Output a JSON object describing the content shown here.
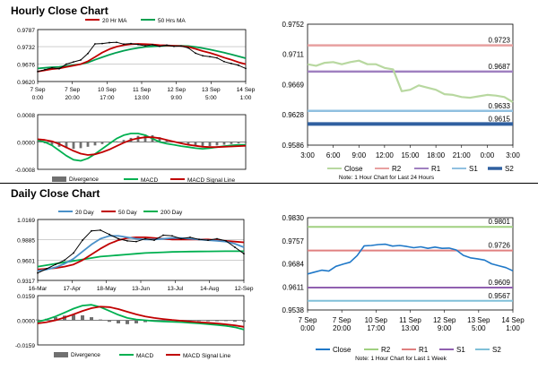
{
  "sections": {
    "hourly_title": "Hourly Close Chart",
    "daily_title": "Daily Close Chart"
  },
  "colors": {
    "ma20": "#c00000",
    "ma50": "#00a050",
    "ma20day": "#4a90c8",
    "ma200day": "#00b050",
    "price": "#000000",
    "close_hourly": "#b8d8a0",
    "close_weekly": "#1f78c8",
    "r2": "#e8a0a0",
    "r1": "#a080c0",
    "s1": "#90c0e0",
    "s2": "#3060a0",
    "r2_week": "#a0d080",
    "r1_week": "#e08080",
    "s1_week": "#9060b0",
    "s2_week": "#80c0d8",
    "divergence": "#707070",
    "macd": "#00b050",
    "macd_signal": "#c00000"
  },
  "chart_data": [
    {
      "id": "hourly-price",
      "type": "line",
      "legend": [
        "20 Hr MA",
        "50 Hrs MA"
      ],
      "legend_position": "top",
      "ylim": [
        0.962,
        0.9787
      ],
      "yticks": [
        "0.9787",
        "0.9732",
        "0.9676",
        "0.9620"
      ],
      "yticks_values": [
        0.9787,
        0.9732,
        0.9676,
        0.962
      ],
      "xticks": [
        "7 Sep|0:00",
        "7 Sep|20:00",
        "10 Sep|17:00",
        "11 Sep|13:00",
        "12 Sep|9:00",
        "13 Sep|5:00",
        "14 Sep|1:00"
      ],
      "price": [
        0.9652,
        0.9658,
        0.9664,
        0.9661,
        0.9676,
        0.9683,
        0.9689,
        0.971,
        0.9741,
        0.9742,
        0.9745,
        0.9746,
        0.974,
        0.9742,
        0.9739,
        0.9735,
        0.9738,
        0.9733,
        0.9737,
        0.9733,
        0.9734,
        0.9728,
        0.9711,
        0.9703,
        0.97,
        0.9696,
        0.9684,
        0.9678,
        0.9672,
        0.9662
      ],
      "ma20": [
        0.9652,
        0.9656,
        0.966,
        0.9662,
        0.9667,
        0.9671,
        0.9676,
        0.9685,
        0.9699,
        0.9713,
        0.9724,
        0.9732,
        0.9737,
        0.974,
        0.9741,
        0.974,
        0.9739,
        0.9737,
        0.9736,
        0.9735,
        0.9734,
        0.9731,
        0.9725,
        0.9718,
        0.9712,
        0.9705,
        0.9697,
        0.969,
        0.9682,
        0.9676
      ],
      "ma50": [
        0.9662,
        0.9664,
        0.9666,
        0.9667,
        0.967,
        0.9673,
        0.9676,
        0.9681,
        0.969,
        0.9698,
        0.9706,
        0.9713,
        0.9719,
        0.9724,
        0.9728,
        0.9731,
        0.9733,
        0.9734,
        0.9735,
        0.9735,
        0.9735,
        0.9734,
        0.9731,
        0.9727,
        0.9723,
        0.9718,
        0.9713,
        0.9707,
        0.9701,
        0.9695
      ]
    },
    {
      "id": "hourly-macd",
      "type": "bar",
      "legend": [
        "Divergence",
        "MACD",
        "MACD Signal Line"
      ],
      "legend_position": "bottom",
      "ylim": [
        -0.0008,
        0.0008
      ],
      "yticks": [
        "0.0008",
        "0.0000",
        "-0.0008"
      ],
      "yticks_values": [
        0.0008,
        0.0,
        -0.0008
      ],
      "divergence": [
        0.0,
        -4e-05,
        -8e-05,
        -0.00014,
        -0.00018,
        -0.0002,
        -0.00018,
        -0.00014,
        -0.0001,
        -6e-05,
        -2e-05,
        2e-05,
        6e-05,
        0.00012,
        0.00018,
        0.00022,
        0.0002,
        0.00014,
        6e-05,
        0.0,
        -4e-05,
        -8e-05,
        -0.0001,
        -0.00012,
        -0.00012,
        -0.0001,
        -8e-05,
        -6e-05,
        -4e-05,
        -2e-05
      ],
      "macd": [
        5e-05,
        0.0,
        -0.0001,
        -0.00025,
        -0.0004,
        -0.00052,
        -0.00055,
        -0.00048,
        -0.00035,
        -0.0002,
        -5e-05,
        0.0001,
        0.0002,
        0.00025,
        0.00025,
        0.0002,
        0.0001,
        0.0,
        -5e-05,
        -8e-05,
        -0.00012,
        -0.00015,
        -0.00018,
        -0.0002,
        -0.00018,
        -0.00015,
        -0.00012,
        -0.0001,
        -8e-05,
        -8e-05
      ],
      "signal": [
        8e-05,
        6e-05,
        2e-05,
        -6e-05,
        -0.00016,
        -0.00026,
        -0.00034,
        -0.00038,
        -0.00036,
        -0.0003,
        -0.00022,
        -0.00012,
        -2e-05,
        6e-05,
        0.00011,
        0.00014,
        0.00014,
        0.00011,
        6e-05,
        1e-05,
        -4e-05,
        -8e-05,
        -0.00011,
        -0.00014,
        -0.00015,
        -0.00015,
        -0.00014,
        -0.00013,
        -0.00012,
        -0.00011
      ]
    },
    {
      "id": "hourly-pivots",
      "type": "line",
      "legend": [
        "Close",
        "R2",
        "R1",
        "S1",
        "S2"
      ],
      "legend_position": "bottom",
      "note": "Note: 1 Hour Chart for Last 24 Hours",
      "ylim": [
        0.9586,
        0.9752
      ],
      "yticks": [
        "0.9752",
        "0.9711",
        "0.9669",
        "0.9628",
        "0.9586"
      ],
      "yticks_values": [
        0.9752,
        0.9711,
        0.9669,
        0.9628,
        0.9586
      ],
      "xticks": [
        "3:00",
        "6:00",
        "9:00",
        "12:00",
        "15:00",
        "18:00",
        "21:00",
        "0:00",
        "3:00"
      ],
      "x_range": [
        0,
        24
      ],
      "close_x": [
        0,
        1,
        2,
        3,
        4,
        5,
        6,
        7,
        8,
        9,
        10,
        11,
        12,
        13,
        14,
        15,
        16,
        17,
        18,
        19,
        20,
        21,
        22,
        23,
        24
      ],
      "close": [
        0.9697,
        0.9695,
        0.9699,
        0.97,
        0.9697,
        0.97,
        0.9702,
        0.9697,
        0.9697,
        0.9692,
        0.969,
        0.966,
        0.9662,
        0.9668,
        0.9665,
        0.9662,
        0.9656,
        0.9655,
        0.9652,
        0.9651,
        0.9653,
        0.9655,
        0.9654,
        0.9652,
        0.9645
      ],
      "levels": [
        {
          "name": "R2",
          "value": 0.9723,
          "label": "0.9723"
        },
        {
          "name": "R1",
          "value": 0.9687,
          "label": "0.9687"
        },
        {
          "name": "S1",
          "value": 0.9633,
          "label": "0.9633"
        },
        {
          "name": "S2",
          "value": 0.9615,
          "label": "0.9615"
        }
      ]
    },
    {
      "id": "daily-price",
      "type": "line",
      "legend": [
        "20 Day",
        "50 Day",
        "200 Day"
      ],
      "legend_position": "top",
      "ylim": [
        0.9317,
        1.0169
      ],
      "yticks": [
        "1.0169",
        "0.9885",
        "0.9601",
        "0.9317"
      ],
      "yticks_values": [
        1.0169,
        0.9885,
        0.9601,
        0.9317
      ],
      "xticks": [
        "16-Mar",
        "17-Apr",
        "18-May",
        "13-Jun",
        "13-Jul",
        "14-Aug",
        "12-Sep"
      ],
      "price": [
        0.942,
        0.948,
        0.954,
        0.96,
        0.97,
        0.988,
        1.001,
        1.002,
        0.996,
        0.99,
        0.987,
        0.986,
        0.99,
        0.988,
        0.995,
        0.994,
        0.99,
        0.992,
        0.989,
        0.988,
        0.99,
        0.987,
        0.978,
        0.969
      ],
      "ma20": [
        0.945,
        0.947,
        0.95,
        0.955,
        0.962,
        0.972,
        0.982,
        0.99,
        0.994,
        0.994,
        0.992,
        0.99,
        0.989,
        0.989,
        0.99,
        0.991,
        0.991,
        0.99,
        0.989,
        0.988,
        0.987,
        0.986,
        0.983,
        0.978
      ],
      "ma50": [
        0.947,
        0.948,
        0.949,
        0.951,
        0.954,
        0.96,
        0.968,
        0.976,
        0.983,
        0.988,
        0.991,
        0.992,
        0.992,
        0.991,
        0.99,
        0.989,
        0.989,
        0.989,
        0.989,
        0.989,
        0.988,
        0.987,
        0.986,
        0.985
      ],
      "ma200": [
        0.951,
        0.953,
        0.955,
        0.957,
        0.959,
        0.961,
        0.963,
        0.965,
        0.966,
        0.967,
        0.968,
        0.969,
        0.97,
        0.9705,
        0.971,
        0.9715,
        0.9718,
        0.972,
        0.9722,
        0.9723,
        0.9724,
        0.9725,
        0.9725,
        0.9725
      ]
    },
    {
      "id": "daily-macd",
      "type": "bar",
      "legend": [
        "Divergence",
        "MACD",
        "MACD Signal Line"
      ],
      "legend_position": "bottom",
      "ylim": [
        -0.0159,
        0.0159
      ],
      "yticks": [
        "0.0159",
        "0.0000",
        "-0.0159"
      ],
      "yticks_values": [
        0.0159,
        0.0,
        -0.0159
      ],
      "divergence": [
        0.0005,
        0.001,
        0.002,
        0.003,
        0.0035,
        0.0032,
        0.002,
        0.0005,
        -0.001,
        -0.002,
        -0.0025,
        -0.002,
        -0.0012,
        -0.0005,
        0.0,
        0.0003,
        0.0002,
        -0.0002,
        -0.0005,
        -0.0006,
        -0.0006,
        -0.0005,
        -0.0008,
        -0.001
      ],
      "macd": [
        -0.001,
        0.0005,
        0.0025,
        0.005,
        0.0075,
        0.0095,
        0.01,
        0.0085,
        0.006,
        0.0035,
        0.0015,
        0.0005,
        0.0,
        -0.0005,
        -0.0008,
        -0.001,
        -0.0012,
        -0.0016,
        -0.002,
        -0.0025,
        -0.003,
        -0.0036,
        -0.0045,
        -0.006
      ],
      "signal": [
        -0.002,
        -0.0012,
        0.0,
        0.0018,
        0.0038,
        0.006,
        0.0078,
        0.0088,
        0.0085,
        0.0072,
        0.0055,
        0.0038,
        0.0025,
        0.0015,
        0.0008,
        0.0002,
        -0.0003,
        -0.0008,
        -0.0012,
        -0.0016,
        -0.002,
        -0.0026,
        -0.0033,
        -0.0042
      ]
    },
    {
      "id": "weekly-pivots",
      "type": "line",
      "legend": [
        "Close",
        "R2",
        "R1",
        "S1",
        "S2"
      ],
      "legend_position": "bottom",
      "note": "Note: 1 Hour Chart for Last 1 Week",
      "ylim": [
        0.9538,
        0.983
      ],
      "yticks": [
        "0.9830",
        "0.9757",
        "0.9684",
        "0.9611",
        "0.9538"
      ],
      "yticks_values": [
        0.983,
        0.9757,
        0.9684,
        0.9611,
        0.9538
      ],
      "xticks": [
        "7 Sep|0:00",
        "7 Sep|20:00",
        "10 Sep|17:00",
        "11 Sep|13:00",
        "12 Sep|9:00",
        "13 Sep|5:00",
        "14 Sep|1:00"
      ],
      "x_range": [
        0,
        29
      ],
      "close_x": [
        0,
        1,
        2,
        3,
        4,
        5,
        6,
        7,
        8,
        9,
        10,
        11,
        12,
        13,
        14,
        15,
        16,
        17,
        18,
        19,
        20,
        21,
        22,
        23,
        24,
        25,
        26,
        27,
        28,
        29
      ],
      "close": [
        0.9652,
        0.9658,
        0.9664,
        0.9661,
        0.9676,
        0.9683,
        0.9689,
        0.971,
        0.9741,
        0.9742,
        0.9745,
        0.9746,
        0.974,
        0.9742,
        0.9739,
        0.9735,
        0.9738,
        0.9733,
        0.9737,
        0.9733,
        0.9734,
        0.9728,
        0.9711,
        0.9703,
        0.97,
        0.9696,
        0.9684,
        0.9678,
        0.9672,
        0.9662
      ],
      "levels": [
        {
          "name": "R2",
          "value": 0.9801,
          "label": "0.9801"
        },
        {
          "name": "R1",
          "value": 0.9726,
          "label": "0.9726"
        },
        {
          "name": "S1",
          "value": 0.9609,
          "label": "0.9609"
        },
        {
          "name": "S2",
          "value": 0.9567,
          "label": "0.9567"
        }
      ]
    }
  ]
}
